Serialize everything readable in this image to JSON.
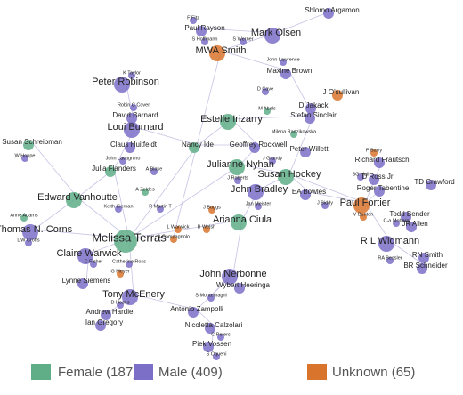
{
  "nodes": [
    {
      "label": "F Fitz"
    },
    {
      "label": "Shlomo Argamon"
    },
    {
      "label": "Paul Rayson"
    },
    {
      "label": "S Hoffmann"
    },
    {
      "label": "S Werner"
    },
    {
      "label": "Mark Olsen"
    },
    {
      "label": "MWA Smith"
    },
    {
      "label": "John Lawrence"
    },
    {
      "label": "Maxine Brown"
    },
    {
      "label": "D Cave"
    },
    {
      "label": "J O'sullivan"
    },
    {
      "label": "K Taylor"
    },
    {
      "label": "Peter Robinson"
    },
    {
      "label": "Robin C Cover"
    },
    {
      "label": "M Abels"
    },
    {
      "label": "D Jakacki"
    },
    {
      "label": "David Barnard"
    },
    {
      "label": "Stefan Sinclair"
    },
    {
      "label": "Estelle Irizarry"
    },
    {
      "label": "Milena Radzikowska"
    },
    {
      "label": "Loui Burnard"
    },
    {
      "label": "Claus Huitfeldt"
    },
    {
      "label": "Nancy Ide"
    },
    {
      "label": "Geoffrey Rockwell"
    },
    {
      "label": "Peter Willett"
    },
    {
      "label": "Susan Schreibman"
    },
    {
      "label": "W Hoppe"
    },
    {
      "label": "John Lavagnino"
    },
    {
      "label": "Julia Flanders"
    },
    {
      "label": "A Blake"
    },
    {
      "label": "Julianne Nyhan"
    },
    {
      "label": "J Grundy"
    },
    {
      "label": "Susan Hockey"
    },
    {
      "label": "J Roberts"
    },
    {
      "label": "John Bradley"
    },
    {
      "label": "P Barry"
    },
    {
      "label": "Richard Frautschi"
    },
    {
      "label": "SG Hall"
    },
    {
      "label": "D Ross Jr"
    },
    {
      "label": "TD Crawford"
    },
    {
      "label": "Roger Tabentine"
    },
    {
      "label": "EA Bowles"
    },
    {
      "label": "J Biddy"
    },
    {
      "label": "Edward Vanhoutte"
    },
    {
      "label": "A Zeldes"
    },
    {
      "label": "Keith Kiernan"
    },
    {
      "label": "R Martin T"
    },
    {
      "label": "Thomas N. Corns"
    },
    {
      "label": "Anne Adams"
    },
    {
      "label": "DW Crofts"
    },
    {
      "label": "Jan Meister"
    },
    {
      "label": "Arianna Ciula"
    },
    {
      "label": "J Boggs"
    },
    {
      "label": "Paul Fortier"
    },
    {
      "label": "Todd Bender"
    },
    {
      "label": "V Bunton"
    },
    {
      "label": "C-a Moberg"
    },
    {
      "label": "JR Allen"
    },
    {
      "label": "Melissa Terras"
    },
    {
      "label": "L Warwick"
    },
    {
      "label": "B Welsh"
    },
    {
      "label": "A Campagnolo"
    },
    {
      "label": "Claire Warwick"
    },
    {
      "label": "C Fisher"
    },
    {
      "label": "Catherine Ross"
    },
    {
      "label": "G Meyer"
    },
    {
      "label": "Lynne Siemens"
    },
    {
      "label": "R L Widmann"
    },
    {
      "label": "RN Smith"
    },
    {
      "label": "RA Bessler"
    },
    {
      "label": "BR Schneider"
    },
    {
      "label": "John Nerbonne"
    },
    {
      "label": "Wybert Heeringa"
    },
    {
      "label": "Tony McEnery"
    },
    {
      "label": "D Hoses"
    },
    {
      "label": "Andrew Hardie"
    },
    {
      "label": "S Montemagni"
    },
    {
      "label": "Antonio Zampolli"
    },
    {
      "label": "Ian Gregory"
    },
    {
      "label": "Nicoletta Calzolari"
    },
    {
      "label": "C Peters"
    },
    {
      "label": "Piek Vossen"
    },
    {
      "label": "S Oqueni"
    }
  ],
  "legend": [
    {
      "label": "Female (187)"
    },
    {
      "label": "Male (409)"
    },
    {
      "label": "Unknown (65)"
    }
  ]
}
